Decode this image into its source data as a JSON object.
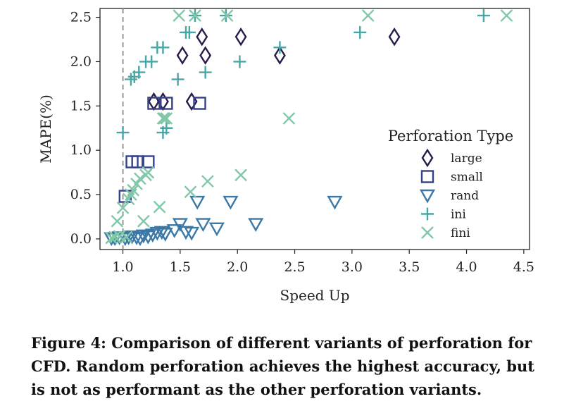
{
  "chart_data": {
    "type": "scatter",
    "xlabel": "Speed Up",
    "ylabel": "MAPE(%)",
    "xlim": [
      0.8,
      4.55
    ],
    "ylim": [
      -0.12,
      2.6
    ],
    "xticks": [
      "1.0",
      "1.5",
      "2.0",
      "2.5",
      "3.0",
      "3.5",
      "4.0",
      "4.5"
    ],
    "yticks": [
      "0.0",
      "0.5",
      "1.0",
      "1.5",
      "2.0",
      "2.5"
    ],
    "grid": false,
    "reference_line": {
      "x": 1.0,
      "style": "dashed"
    },
    "legend": {
      "title": "Perforation Type",
      "placement": "right"
    },
    "series": [
      {
        "name": "large",
        "marker": "diamond",
        "color": "#2a1a4a",
        "x": [
          1.27,
          1.35,
          1.52,
          1.6,
          1.69,
          1.72,
          2.03,
          2.37,
          3.37
        ],
        "y": [
          1.55,
          1.55,
          2.07,
          1.55,
          2.28,
          2.07,
          2.28,
          2.07,
          2.28
        ]
      },
      {
        "name": "small",
        "marker": "square",
        "color": "#34408a",
        "x": [
          1.02,
          1.08,
          1.13,
          1.22,
          1.27,
          1.38,
          1.67
        ],
        "y": [
          0.48,
          0.87,
          0.87,
          0.87,
          1.53,
          1.53,
          1.53
        ]
      },
      {
        "name": "rand",
        "marker": "triangle-down",
        "color": "#3a78a8",
        "x": [
          0.9,
          0.93,
          0.97,
          1.02,
          1.05,
          1.08,
          1.12,
          1.15,
          1.18,
          1.22,
          1.26,
          1.3,
          1.34,
          1.37,
          1.45,
          1.5,
          1.55,
          1.6,
          1.65,
          1.7,
          1.82,
          1.94,
          2.16,
          2.85
        ],
        "y": [
          0.01,
          0.01,
          0.02,
          0.01,
          0.02,
          0.03,
          0.02,
          0.01,
          0.04,
          0.03,
          0.05,
          0.07,
          0.08,
          0.06,
          0.1,
          0.17,
          0.08,
          0.07,
          0.42,
          0.17,
          0.12,
          0.42,
          0.17,
          0.42
        ]
      },
      {
        "name": "ini",
        "marker": "plus",
        "color": "#4aa5a5",
        "x": [
          1.0,
          1.07,
          1.1,
          1.14,
          1.2,
          1.25,
          1.3,
          1.35,
          1.35,
          1.38,
          1.48,
          1.55,
          1.58,
          1.63,
          1.72,
          1.9,
          2.02,
          2.37,
          3.07,
          4.15
        ],
        "y": [
          1.2,
          1.8,
          1.83,
          1.88,
          2.0,
          2.0,
          2.16,
          1.2,
          2.16,
          1.25,
          1.8,
          2.33,
          2.33,
          2.52,
          1.88,
          2.52,
          2.0,
          2.16,
          2.33,
          2.52
        ],
        "vertical_overlap_x": 1.0
      },
      {
        "name": "fini",
        "marker": "x",
        "color": "#80c8a8",
        "x": [
          0.9,
          0.93,
          0.95,
          0.97,
          1.0,
          1.03,
          1.05,
          1.07,
          1.09,
          1.12,
          1.15,
          1.18,
          1.2,
          1.22,
          1.32,
          1.35,
          1.36,
          1.38,
          1.49,
          1.59,
          1.63,
          1.74,
          1.91,
          2.03,
          2.45,
          3.14,
          4.35
        ],
        "y": [
          0.01,
          0.02,
          0.2,
          0.03,
          0.35,
          0.02,
          0.45,
          0.5,
          0.55,
          0.62,
          0.68,
          0.2,
          0.72,
          0.75,
          0.36,
          1.36,
          1.36,
          1.36,
          2.52,
          0.53,
          2.52,
          0.65,
          2.52,
          0.72,
          1.36,
          2.52,
          2.52
        ]
      }
    ]
  },
  "caption": "Figure 4: Comparison of different variants of perforation for CFD. Random perforation achieves the highest accuracy, but is not as performant as the other perforation variants."
}
